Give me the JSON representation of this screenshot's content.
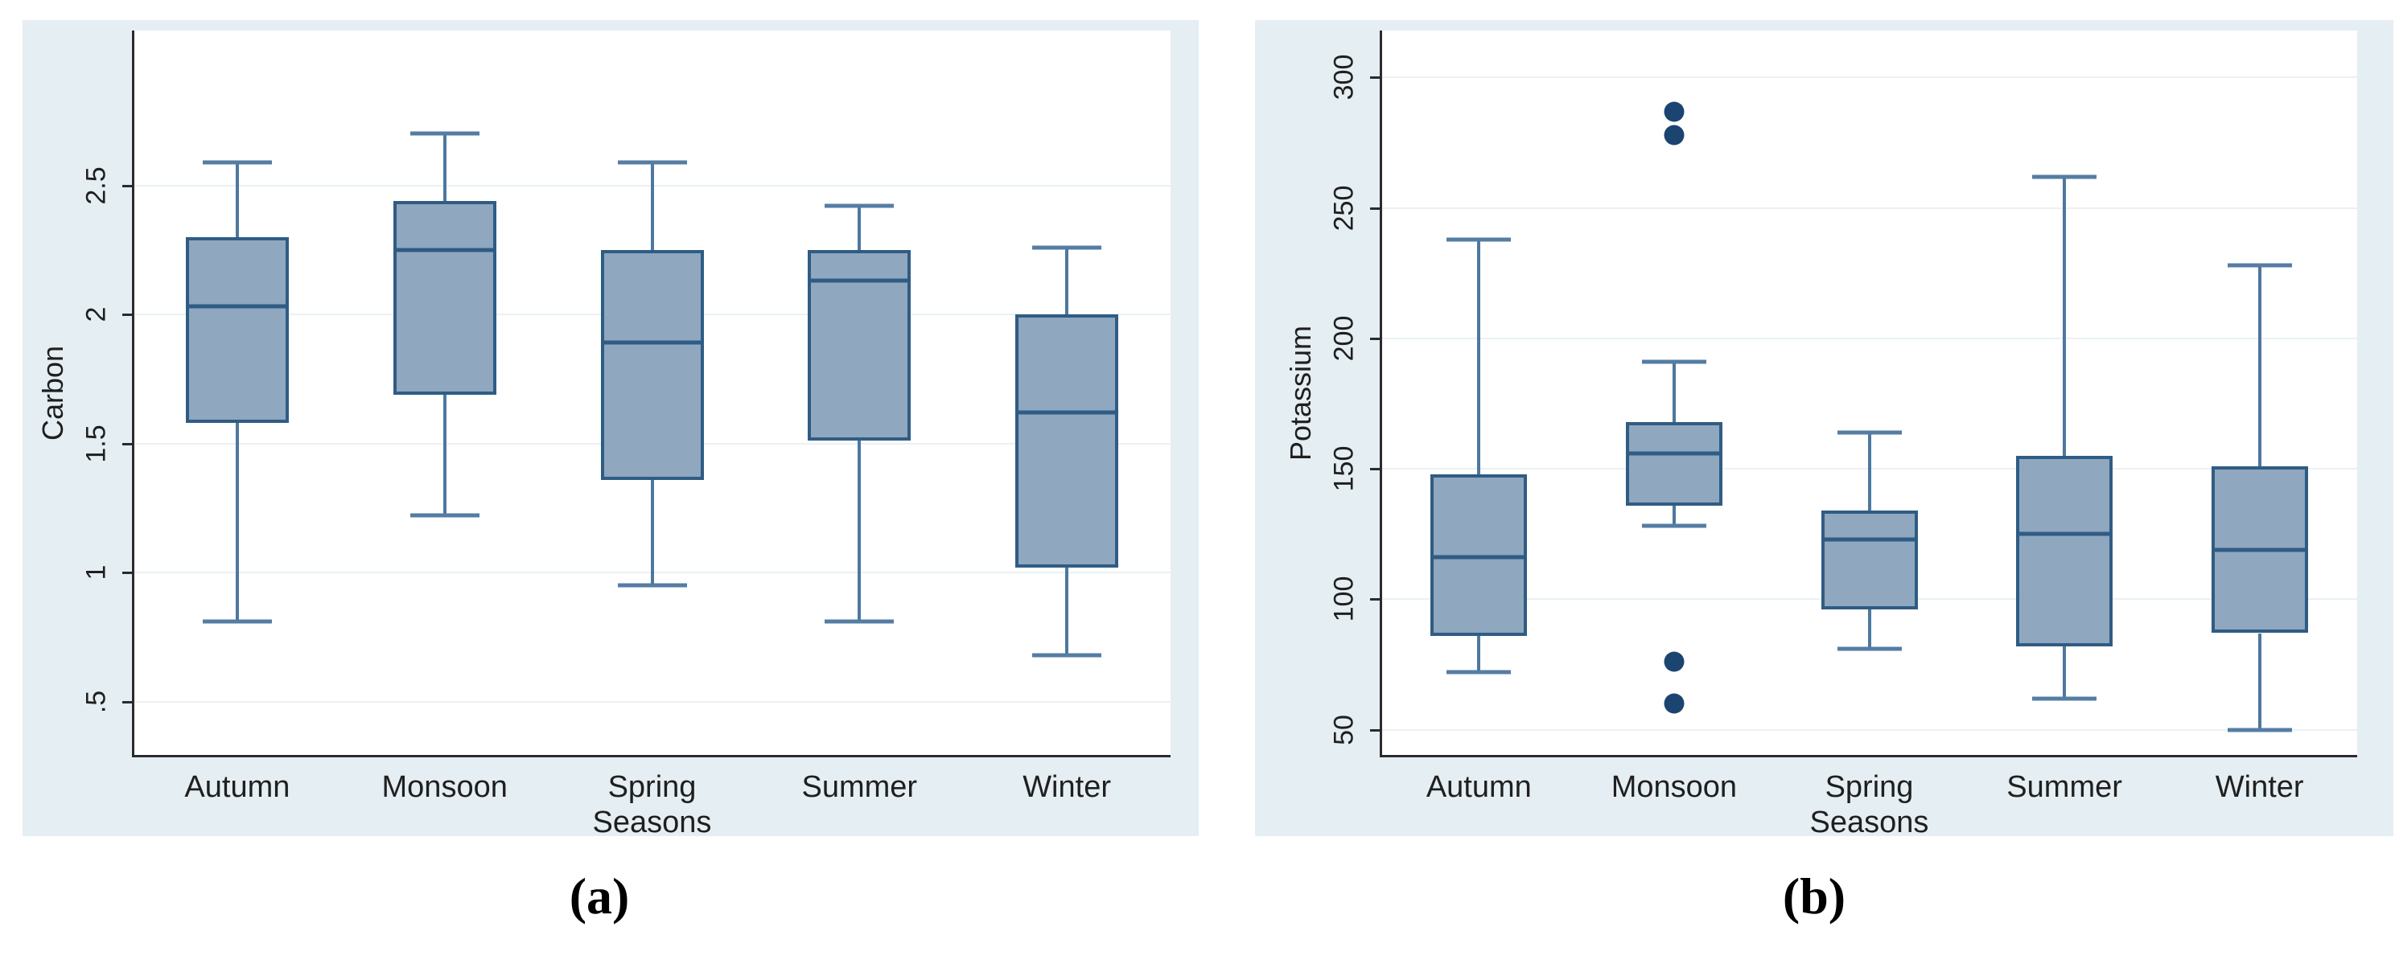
{
  "figure": {
    "caption_a": "(a)",
    "caption_b": "(b)"
  },
  "colors": {
    "panel_bg": "#e5eef2",
    "plot_bg": "#ffffff",
    "gridline": "#e9f1f4",
    "axis": "#2b2b2b",
    "text": "#1f1f1f",
    "box_fill": "#8fa7bf",
    "box_border": "#2f5c84",
    "whisker": "#4d789f",
    "whisker_cap": "#557da4",
    "outlier": "#1b4470"
  },
  "chart_data": [
    {
      "type": "box",
      "caption": "(a)",
      "ylabel": "Carbon",
      "xlabel": "Seasons",
      "categories": [
        "Autumn",
        "Monsoon",
        "Spring",
        "Summer",
        "Winter"
      ],
      "yticks": [
        0.5,
        1,
        1.5,
        2,
        2.5
      ],
      "ytick_labels": [
        ".5",
        "1",
        "1.5",
        "2",
        "2.5"
      ],
      "ylim": [
        0.29,
        3.1
      ],
      "grid": true,
      "legend": "none",
      "boxes": [
        {
          "category": "Autumn",
          "whisker_low": 0.81,
          "q1": 1.58,
          "median": 2.03,
          "q3": 2.3,
          "whisker_high": 2.59,
          "outliers": []
        },
        {
          "category": "Monsoon",
          "whisker_low": 1.22,
          "q1": 1.69,
          "median": 2.25,
          "q3": 2.44,
          "whisker_high": 2.7,
          "outliers": []
        },
        {
          "category": "Spring",
          "whisker_low": 0.95,
          "q1": 1.36,
          "median": 1.89,
          "q3": 2.25,
          "whisker_high": 2.59,
          "outliers": []
        },
        {
          "category": "Summer",
          "whisker_low": 0.81,
          "q1": 1.51,
          "median": 2.13,
          "q3": 2.25,
          "whisker_high": 2.42,
          "outliers": []
        },
        {
          "category": "Winter",
          "whisker_low": 0.68,
          "q1": 1.02,
          "median": 1.62,
          "q3": 2.0,
          "whisker_high": 2.26,
          "outliers": []
        }
      ]
    },
    {
      "type": "box",
      "caption": "(b)",
      "ylabel": "Potassium",
      "xlabel": "Seasons",
      "categories": [
        "Autumn",
        "Monsoon",
        "Spring",
        "Summer",
        "Winter"
      ],
      "yticks": [
        50,
        100,
        150,
        200,
        250,
        300
      ],
      "ytick_labels": [
        "50",
        "100",
        "150",
        "200",
        "250",
        "300"
      ],
      "ylim": [
        40,
        318
      ],
      "grid": true,
      "legend": "none",
      "boxes": [
        {
          "category": "Autumn",
          "whisker_low": 72,
          "q1": 86,
          "median": 116,
          "q3": 148,
          "whisker_high": 238,
          "outliers": []
        },
        {
          "category": "Monsoon",
          "whisker_low": 128,
          "q1": 136,
          "median": 156,
          "q3": 168,
          "whisker_high": 191,
          "outliers": [
            287,
            278,
            76,
            60
          ]
        },
        {
          "category": "Spring",
          "whisker_low": 81,
          "q1": 96,
          "median": 123,
          "q3": 134,
          "whisker_high": 164,
          "outliers": []
        },
        {
          "category": "Summer",
          "whisker_low": 62,
          "q1": 82,
          "median": 125,
          "q3": 155,
          "whisker_high": 262,
          "outliers": []
        },
        {
          "category": "Winter",
          "whisker_low": 50,
          "q1": 87,
          "median": 119,
          "q3": 151,
          "whisker_high": 228,
          "outliers": []
        }
      ]
    }
  ]
}
